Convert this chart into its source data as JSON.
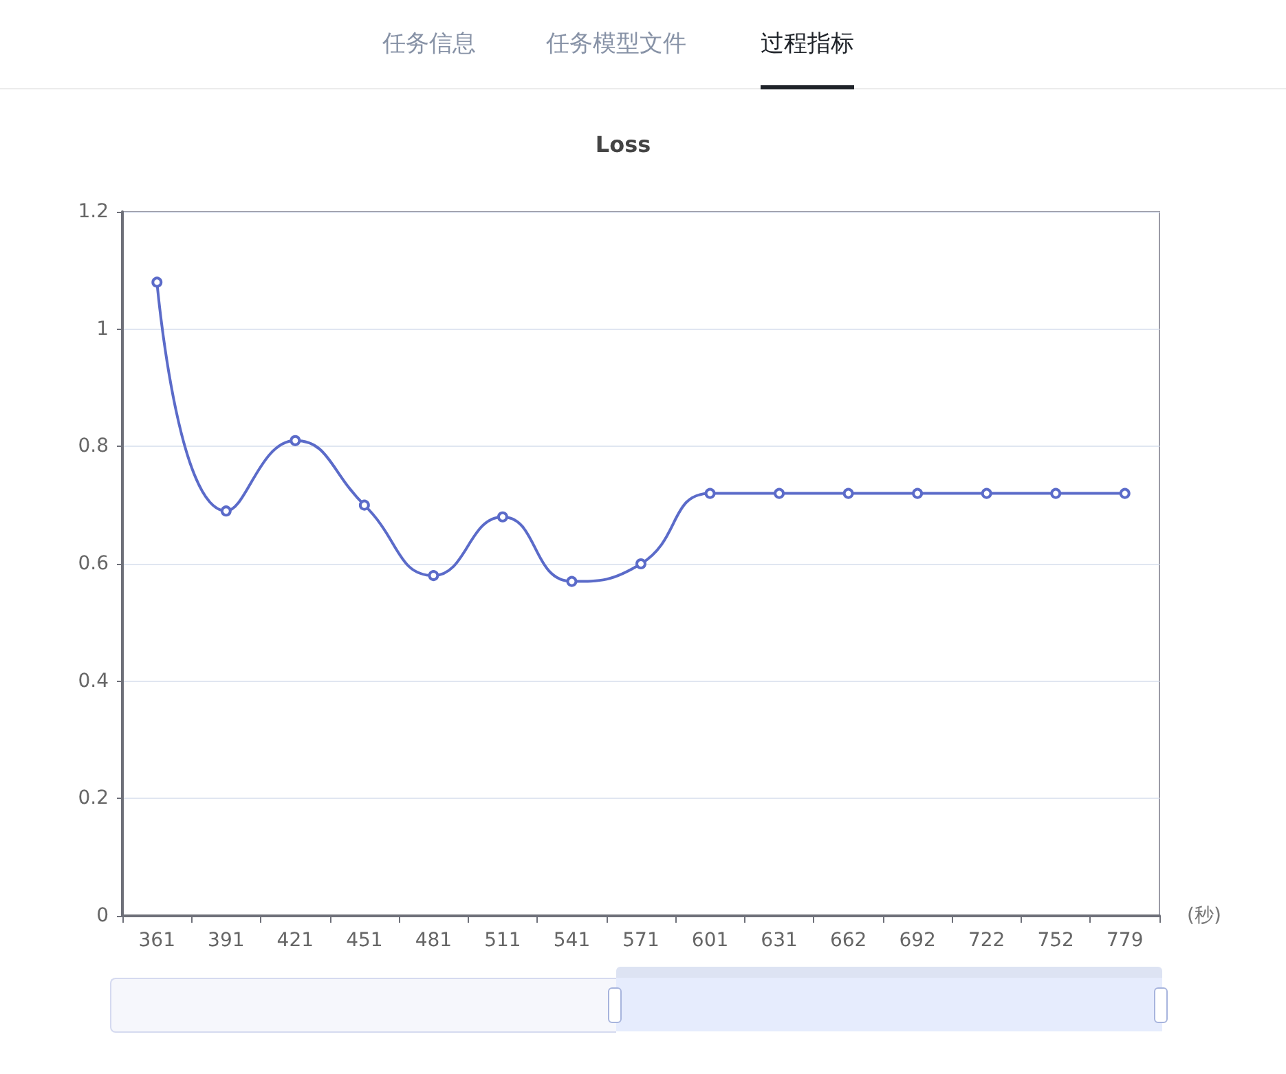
{
  "chart_data": {
    "type": "line",
    "title": "Loss",
    "xlabel": "(秒)",
    "annotations": [
      "任务信息",
      "任务模型文件",
      "过程指标"
    ],
    "categories": [
      "361",
      "391",
      "421",
      "451",
      "481",
      "511",
      "541",
      "571",
      "601",
      "631",
      "662",
      "692",
      "722",
      "752",
      "779"
    ],
    "series": [
      {
        "color": "#5b6bc9",
        "values": [
          1.08,
          0.69,
          0.81,
          0.7,
          0.58,
          0.68,
          0.57,
          0.6,
          0.72,
          0.72,
          0.72,
          0.72,
          0.72,
          0.72,
          0.72
        ]
      }
    ],
    "ylim": [
      0,
      1.2
    ],
    "yticks": [
      0,
      0.2,
      0.4,
      0.6,
      0.8,
      1,
      1.2
    ],
    "grid": "y",
    "marker": "circle",
    "line_style": "solid"
  }
}
